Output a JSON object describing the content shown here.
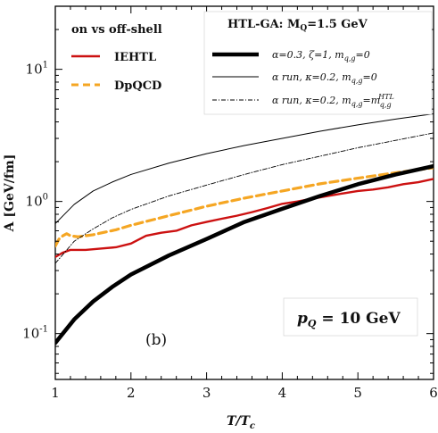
{
  "chart_data": {
    "type": "line",
    "title": "",
    "xlabel": "T/T",
    "xlabel_sub": "c",
    "ylabel": "A [GeV/fm]",
    "xlim": [
      1,
      6
    ],
    "ylim": [
      0.045,
      30
    ],
    "yscale": "log",
    "x_ticks": [
      1,
      2,
      3,
      4,
      5,
      6
    ],
    "x_tick_labels": [
      "1",
      "2",
      "3",
      "4",
      "5",
      "6"
    ],
    "y_ticks": [
      0.1,
      1,
      10
    ],
    "y_tick_labels": [
      {
        "mantissa": "10",
        "exp": "-1"
      },
      {
        "mantissa": "10",
        "exp": "0"
      },
      {
        "mantissa": "10",
        "exp": "1"
      }
    ],
    "legend_left": {
      "title": "on vs off-shell",
      "entries": [
        {
          "label": "IEHTL",
          "color": "#cc1111",
          "style": "solid"
        },
        {
          "label": "DpQCD",
          "color": "#f5a623",
          "style": "dashed"
        }
      ]
    },
    "legend_right": {
      "title": "HTL-GA: M",
      "title_sub": "Q",
      "title_value": "=1.5 GeV",
      "entries": [
        {
          "label": "α=0.3, ζ=1, m",
          "sub": "q,g",
          "suffix": "=0",
          "style": "thick"
        },
        {
          "label": "α run, κ=0.2, m",
          "sub": "q,g",
          "suffix": "=0",
          "style": "thin"
        },
        {
          "label": "α run, κ=0.2, m",
          "sub": "q,g",
          "suffix": "=m",
          "sub2": "q,g",
          "sup2": "HTL",
          "style": "dashdot"
        }
      ]
    },
    "annotation_panel": "(b)",
    "annotation_p": "p",
    "annotation_p_sub": "Q",
    "annotation_p_value": " = 10 GeV",
    "series": [
      {
        "name": "IEHTL",
        "color": "#cc1111",
        "x": [
          1.0,
          1.1,
          1.2,
          1.4,
          1.6,
          1.8,
          2.0,
          2.2,
          2.4,
          2.6,
          2.8,
          3.0,
          3.2,
          3.4,
          3.6,
          3.8,
          4.0,
          4.2,
          4.4,
          4.6,
          4.8,
          5.0,
          5.2,
          5.4,
          5.6,
          5.8,
          6.0
        ],
        "y": [
          0.38,
          0.41,
          0.43,
          0.43,
          0.44,
          0.45,
          0.48,
          0.55,
          0.58,
          0.6,
          0.66,
          0.7,
          0.74,
          0.78,
          0.83,
          0.89,
          0.96,
          1.0,
          1.05,
          1.1,
          1.15,
          1.2,
          1.23,
          1.28,
          1.35,
          1.4,
          1.48
        ]
      },
      {
        "name": "DpQCD",
        "color": "#f5a623",
        "x": [
          1.0,
          1.05,
          1.1,
          1.15,
          1.2,
          1.3,
          1.5,
          1.8,
          2.0,
          2.5,
          3.0,
          3.5,
          4.0,
          4.5,
          5.0,
          5.5,
          6.0
        ],
        "y": [
          0.46,
          0.52,
          0.55,
          0.57,
          0.55,
          0.54,
          0.56,
          0.61,
          0.66,
          0.78,
          0.92,
          1.06,
          1.2,
          1.36,
          1.5,
          1.65,
          1.8
        ]
      },
      {
        "name": "α=0.3, ζ=1, m=0",
        "color": "#000000",
        "x": [
          1.0,
          1.25,
          1.5,
          1.75,
          2.0,
          2.5,
          3.0,
          3.5,
          4.0,
          4.5,
          5.0,
          5.5,
          6.0
        ],
        "y": [
          0.085,
          0.128,
          0.175,
          0.225,
          0.28,
          0.39,
          0.52,
          0.7,
          0.88,
          1.1,
          1.35,
          1.6,
          1.85
        ]
      },
      {
        "name": "α run, κ=0.2, m=0",
        "color": "#000000",
        "x": [
          1.0,
          1.25,
          1.5,
          1.75,
          2.0,
          2.5,
          3.0,
          3.5,
          4.0,
          4.5,
          5.0,
          5.5,
          6.0
        ],
        "y": [
          0.68,
          0.95,
          1.2,
          1.4,
          1.6,
          1.95,
          2.3,
          2.65,
          3.0,
          3.4,
          3.8,
          4.2,
          4.6
        ]
      },
      {
        "name": "α run, κ=0.2, m=m_HTL",
        "color": "#000000",
        "x": [
          1.0,
          1.25,
          1.5,
          1.75,
          2.0,
          2.5,
          3.0,
          3.5,
          4.0,
          4.5,
          5.0,
          5.5,
          6.0
        ],
        "y": [
          0.34,
          0.5,
          0.62,
          0.75,
          0.87,
          1.1,
          1.33,
          1.6,
          1.9,
          2.2,
          2.55,
          2.9,
          3.3
        ]
      }
    ]
  }
}
